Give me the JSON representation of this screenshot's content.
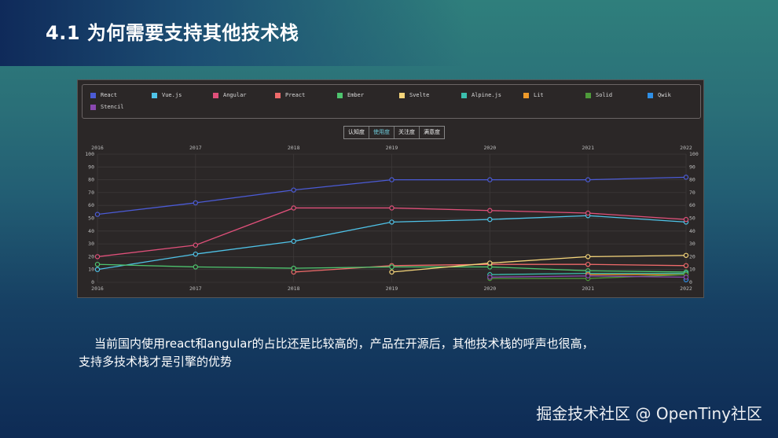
{
  "slide": {
    "title": "4.1 为何需要支持其他技术栈",
    "caption_line1": "当前国内使用react和angular的占比还是比较高的，产品在开源后，其他技术栈的呼声也很高，",
    "caption_line2": "支持多技术栈才是引擎的优势",
    "watermark": "掘金技术社区 @ OpenTiny社区"
  },
  "tabs": [
    {
      "label": "认知度",
      "active": false
    },
    {
      "label": "使用度",
      "active": true
    },
    {
      "label": "关注度",
      "active": false
    },
    {
      "label": "满意度",
      "active": false
    }
  ],
  "legend": [
    {
      "name": "React",
      "color": "#4b5bd6"
    },
    {
      "name": "Vue.js",
      "color": "#4fc3e8"
    },
    {
      "name": "Angular",
      "color": "#e0507a"
    },
    {
      "name": "Preact",
      "color": "#ef6a6a"
    },
    {
      "name": "Ember",
      "color": "#4ec46e"
    },
    {
      "name": "Svelte",
      "color": "#f5d57a"
    },
    {
      "name": "Alpine.js",
      "color": "#3bbfae"
    },
    {
      "name": "Lit",
      "color": "#ef9a2a"
    },
    {
      "name": "Solid",
      "color": "#4e9a3a"
    },
    {
      "name": "Qwik",
      "color": "#2f8fe6"
    },
    {
      "name": "Stencil",
      "color": "#8a48b0"
    }
  ],
  "chart_data": {
    "type": "line",
    "title": "",
    "x": [
      "2016",
      "2017",
      "2018",
      "2019",
      "2020",
      "2021",
      "2022"
    ],
    "ylim": [
      0,
      100
    ],
    "yticks": [
      0,
      10,
      20,
      30,
      40,
      50,
      60,
      70,
      80,
      90,
      100
    ],
    "grid": true,
    "legend_position": "top",
    "series": [
      {
        "name": "React",
        "color": "#4b5bd6",
        "values": [
          53,
          62,
          72,
          80,
          80,
          80,
          82
        ]
      },
      {
        "name": "Vue.js",
        "color": "#4fc3e8",
        "values": [
          10,
          22,
          32,
          47,
          49,
          52,
          47
        ]
      },
      {
        "name": "Angular",
        "color": "#e0507a",
        "values": [
          20,
          29,
          58,
          58,
          56,
          54,
          49
        ]
      },
      {
        "name": "Preact",
        "color": "#ef6a6a",
        "values": [
          null,
          null,
          8,
          13,
          14,
          14,
          13
        ]
      },
      {
        "name": "Ember",
        "color": "#4ec46e",
        "values": [
          14,
          12,
          11,
          12,
          12,
          9,
          8
        ]
      },
      {
        "name": "Svelte",
        "color": "#f5d57a",
        "values": [
          null,
          null,
          null,
          8,
          15,
          20,
          21
        ]
      },
      {
        "name": "Alpine.js",
        "color": "#3bbfae",
        "values": [
          null,
          null,
          null,
          null,
          6,
          7,
          7
        ]
      },
      {
        "name": "Lit",
        "color": "#ef9a2a",
        "values": [
          null,
          null,
          null,
          null,
          null,
          6,
          6
        ]
      },
      {
        "name": "Solid",
        "color": "#4e9a3a",
        "values": [
          null,
          null,
          null,
          null,
          3,
          3,
          6
        ]
      },
      {
        "name": "Qwik",
        "color": "#2f8fe6",
        "values": [
          null,
          null,
          null,
          null,
          null,
          null,
          2
        ]
      },
      {
        "name": "Stencil",
        "color": "#8a48b0",
        "values": [
          null,
          null,
          null,
          null,
          4,
          5,
          4
        ]
      }
    ]
  }
}
